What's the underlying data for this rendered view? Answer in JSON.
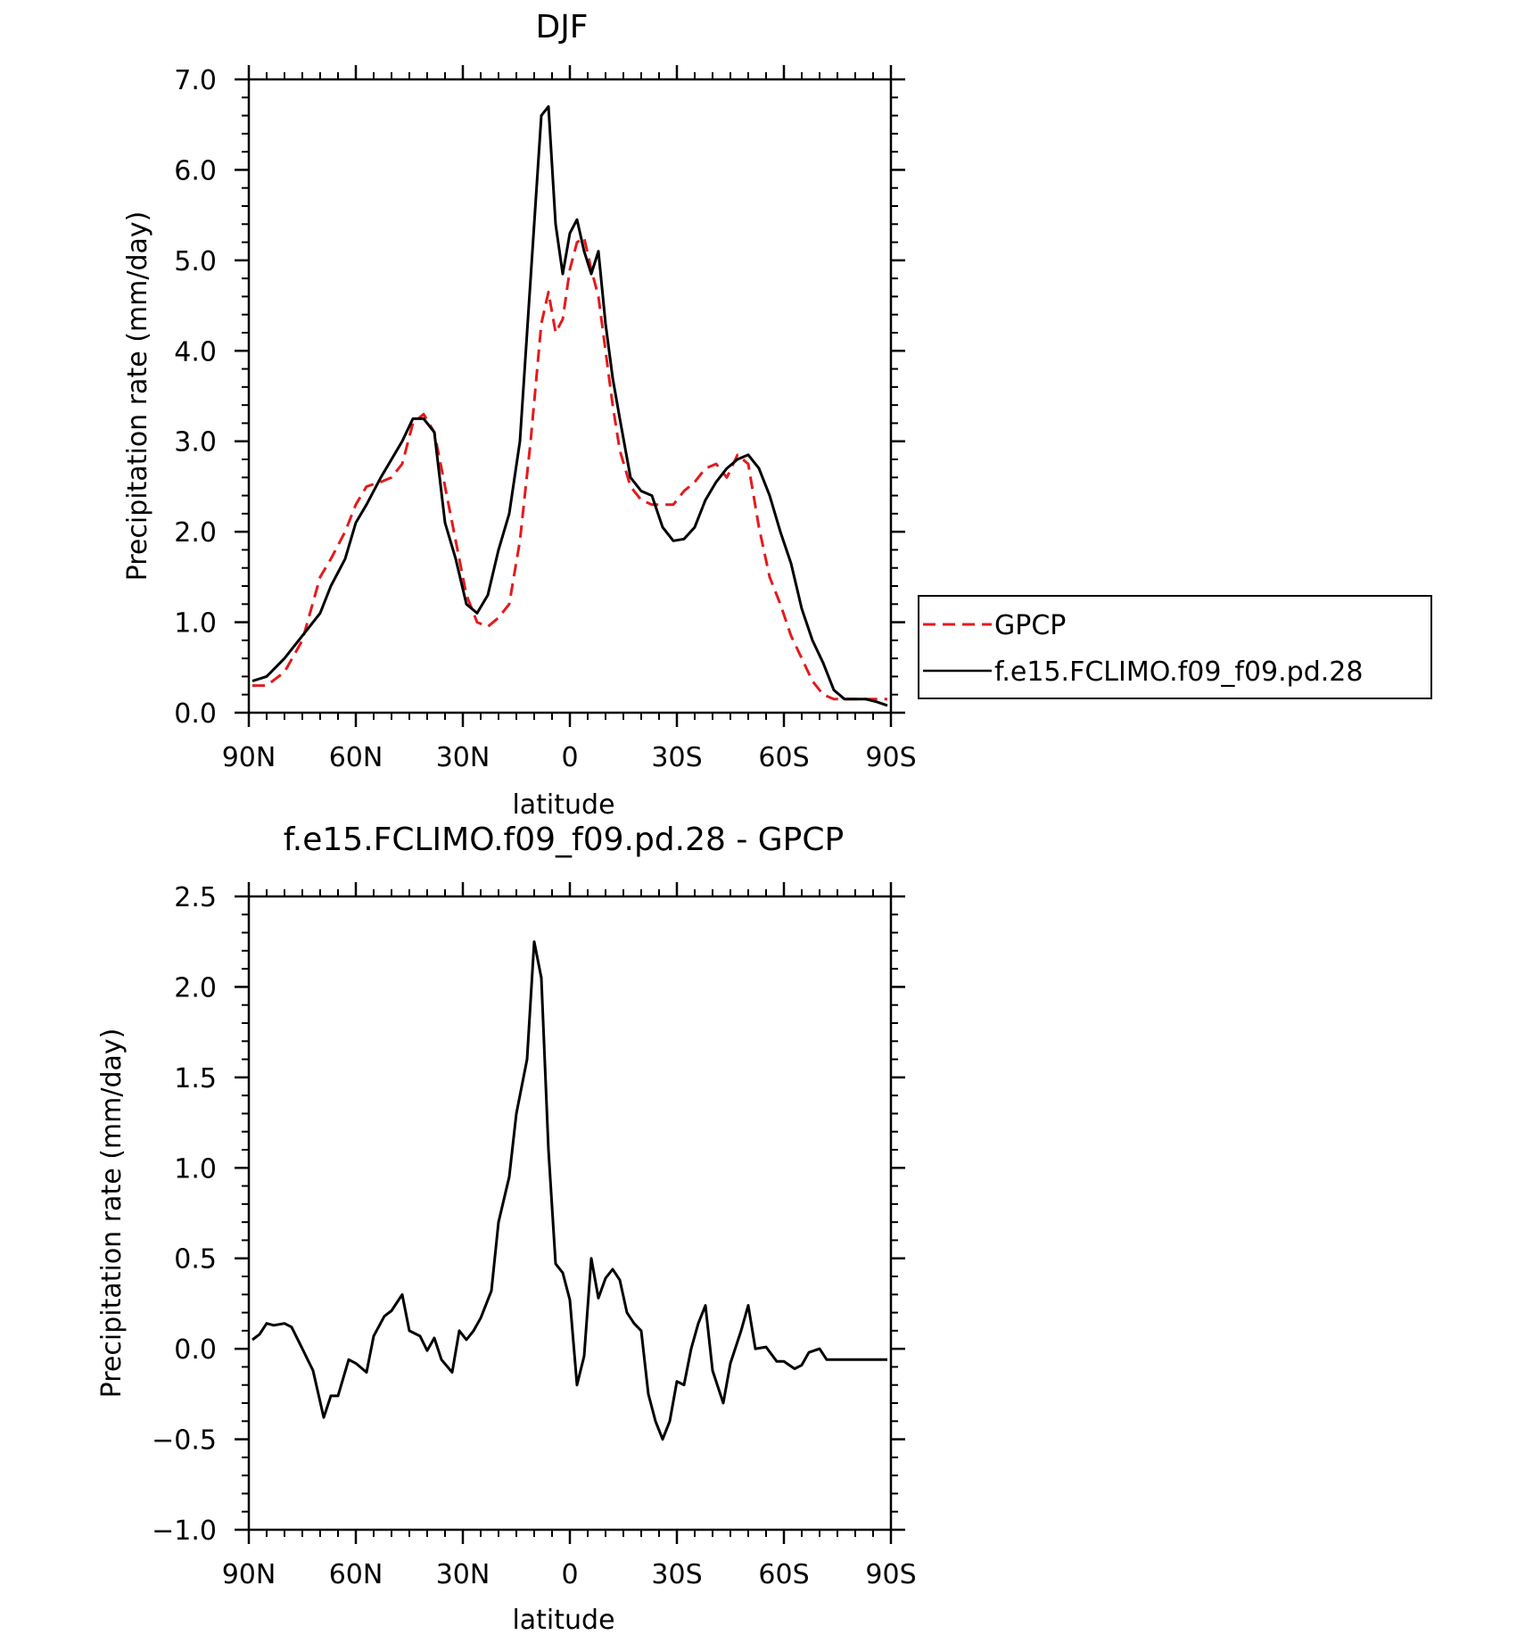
{
  "chart_data": [
    {
      "type": "line",
      "title": "DJF",
      "xlabel": "latitude",
      "ylabel": "Precipitation rate (mm/day)",
      "xlim": [
        90,
        -90
      ],
      "ylim": [
        0,
        7
      ],
      "xticks": [
        90,
        60,
        30,
        0,
        -30,
        -60,
        -90
      ],
      "xtick_labels": [
        "90N",
        "60N",
        "30N",
        "0",
        "30S",
        "60S",
        "90S"
      ],
      "yticks": [
        0,
        1,
        2,
        3,
        4,
        5,
        6,
        7
      ],
      "ytick_labels": [
        "0.0",
        "1.0",
        "2.0",
        "3.0",
        "4.0",
        "5.0",
        "6.0",
        "7.0"
      ],
      "grid": false,
      "legend": "outside-right",
      "series": [
        {
          "name": "GPCP",
          "color": "#e41a1c",
          "style": "dashed",
          "x": [
            89,
            85,
            80,
            75,
            70,
            67,
            63,
            60,
            57,
            53,
            50,
            47,
            44,
            41,
            38,
            35,
            32,
            29,
            26,
            23,
            20,
            17,
            14,
            11,
            8,
            6,
            4,
            2,
            0,
            -2,
            -4,
            -6,
            -8,
            -10,
            -12,
            -14,
            -17,
            -20,
            -23,
            -26,
            -29,
            -32,
            -35,
            -38,
            -41,
            -44,
            -47,
            -50,
            -53,
            -56,
            -59,
            -62,
            -65,
            -68,
            -71,
            -74,
            -77,
            -80,
            -83,
            -86,
            -89
          ],
          "y": [
            0.3,
            0.3,
            0.45,
            0.8,
            1.5,
            1.7,
            2.0,
            2.3,
            2.5,
            2.55,
            2.6,
            2.75,
            3.2,
            3.3,
            3.1,
            2.5,
            1.9,
            1.3,
            1.0,
            0.95,
            1.05,
            1.2,
            1.9,
            3.0,
            4.3,
            4.65,
            4.2,
            4.35,
            4.9,
            5.2,
            5.25,
            4.9,
            4.6,
            4.0,
            3.4,
            2.9,
            2.5,
            2.35,
            2.3,
            2.3,
            2.3,
            2.45,
            2.55,
            2.7,
            2.75,
            2.6,
            2.85,
            2.75,
            2.05,
            1.5,
            1.2,
            0.85,
            0.6,
            0.35,
            0.2,
            0.15,
            0.15,
            0.15,
            0.15,
            0.15,
            0.15
          ]
        },
        {
          "name": "f.e15.FCLIMO.f09_f09.pd.28",
          "color": "#000000",
          "style": "solid",
          "x": [
            89,
            85,
            80,
            75,
            70,
            67,
            63,
            60,
            57,
            53,
            50,
            47,
            44,
            41,
            38,
            35,
            32,
            29,
            26,
            23,
            20,
            17,
            14,
            11,
            8,
            6,
            4,
            2,
            0,
            -2,
            -4,
            -6,
            -8,
            -10,
            -12,
            -14,
            -17,
            -20,
            -23,
            -26,
            -29,
            -32,
            -35,
            -38,
            -41,
            -44,
            -47,
            -50,
            -53,
            -56,
            -59,
            -62,
            -65,
            -68,
            -71,
            -74,
            -77,
            -80,
            -83,
            -86,
            -89
          ],
          "y": [
            0.35,
            0.4,
            0.6,
            0.85,
            1.1,
            1.4,
            1.7,
            2.1,
            2.3,
            2.6,
            2.8,
            3.0,
            3.25,
            3.25,
            3.1,
            2.1,
            1.7,
            1.2,
            1.1,
            1.3,
            1.8,
            2.2,
            3.0,
            4.8,
            6.6,
            6.7,
            5.4,
            4.85,
            5.3,
            5.45,
            5.1,
            4.85,
            5.1,
            4.3,
            3.7,
            3.25,
            2.6,
            2.45,
            2.4,
            2.05,
            1.9,
            1.92,
            2.05,
            2.35,
            2.55,
            2.7,
            2.8,
            2.85,
            2.7,
            2.4,
            2.0,
            1.65,
            1.15,
            0.8,
            0.55,
            0.25,
            0.15,
            0.15,
            0.15,
            0.12,
            0.08
          ]
        }
      ]
    },
    {
      "type": "line",
      "title": "f.e15.FCLIMO.f09_f09.pd.28 - GPCP",
      "xlabel": "latitude",
      "ylabel": "Precipitation rate (mm/day)",
      "xlim": [
        90,
        -90
      ],
      "ylim": [
        -1,
        2.5
      ],
      "xticks": [
        90,
        60,
        30,
        0,
        -30,
        -60,
        -90
      ],
      "xtick_labels": [
        "90N",
        "60N",
        "30N",
        "0",
        "30S",
        "60S",
        "90S"
      ],
      "yticks": [
        -1,
        -0.5,
        0,
        0.5,
        1,
        1.5,
        2,
        2.5
      ],
      "ytick_labels": [
        "−1.0",
        "−0.5",
        "0.0",
        "0.5",
        "1.0",
        "1.5",
        "2.0",
        "2.5"
      ],
      "grid": false,
      "series": [
        {
          "color": "#000000",
          "style": "solid",
          "x": [
            89,
            87,
            85,
            83,
            80,
            78,
            75,
            72,
            69,
            67,
            65,
            62,
            60,
            57,
            55,
            52,
            50,
            47,
            45,
            42,
            40,
            38,
            36,
            33,
            31,
            29,
            27,
            25,
            22,
            20,
            17,
            15,
            12,
            10,
            8,
            6,
            4,
            2,
            0,
            -2,
            -4,
            -6,
            -8,
            -10,
            -12,
            -14,
            -16,
            -18,
            -20,
            -22,
            -24,
            -26,
            -28,
            -30,
            -32,
            -34,
            -36,
            -38,
            -40,
            -43,
            -45,
            -48,
            -50,
            -52,
            -55,
            -58,
            -60,
            -63,
            -65,
            -67,
            -70,
            -72,
            -74,
            -77,
            -79,
            -81,
            -83,
            -85,
            -87,
            -89
          ],
          "y": [
            0.05,
            0.08,
            0.14,
            0.13,
            0.14,
            0.12,
            0.0,
            -0.12,
            -0.38,
            -0.26,
            -0.26,
            -0.06,
            -0.08,
            -0.13,
            0.07,
            0.18,
            0.21,
            0.3,
            0.1,
            0.07,
            -0.01,
            0.06,
            -0.06,
            -0.13,
            0.1,
            0.05,
            0.1,
            0.17,
            0.32,
            0.7,
            0.95,
            1.3,
            1.6,
            2.25,
            2.05,
            1.1,
            0.47,
            0.42,
            0.27,
            -0.2,
            -0.04,
            0.5,
            0.28,
            0.39,
            0.44,
            0.38,
            0.2,
            0.14,
            0.1,
            -0.25,
            -0.4,
            -0.5,
            -0.4,
            -0.18,
            -0.2,
            0.0,
            0.14,
            0.24,
            -0.12,
            -0.3,
            -0.08,
            0.1,
            0.24,
            0.0,
            0.01,
            -0.07,
            -0.07,
            -0.11,
            -0.09,
            -0.02,
            0.0,
            -0.06,
            -0.06,
            -0.06,
            -0.06,
            -0.06,
            -0.06,
            -0.06,
            -0.06,
            -0.06
          ]
        }
      ]
    }
  ]
}
